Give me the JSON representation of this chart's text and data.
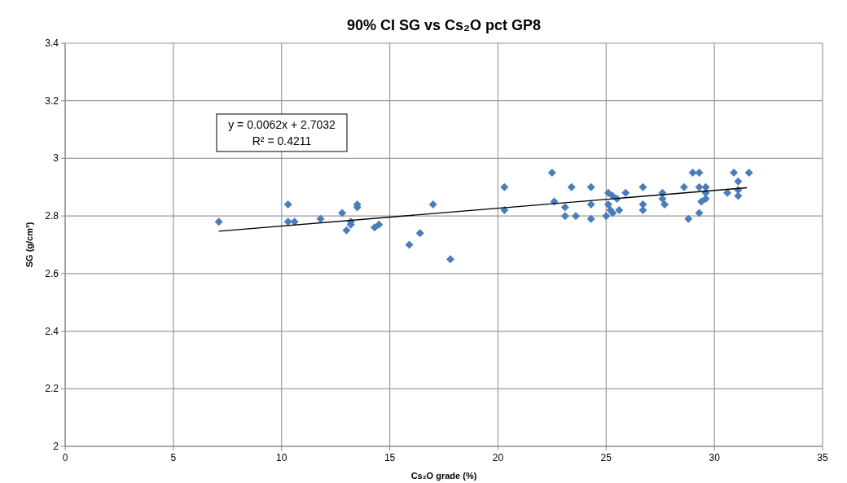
{
  "chart_data": {
    "type": "scatter",
    "title": "90% CI SG vs Cs₂O pct GP8",
    "xlabel": "Cs₂O grade (%)",
    "ylabel": "SG (g/cm³)",
    "xlim": [
      0,
      35
    ],
    "xticks": [
      0,
      5,
      10,
      15,
      20,
      25,
      30,
      35
    ],
    "ylim": [
      2,
      3.4
    ],
    "yticks": [
      2,
      {
        "value": 2.2,
        "label": "2.2"
      },
      {
        "value": 2.4,
        "label": "2.4"
      },
      {
        "value": 2.6,
        "label": "2.6"
      },
      {
        "value": 2.8,
        "label": "2.8"
      },
      3,
      {
        "value": 3.2,
        "label": "3.2"
      },
      {
        "value": 3.4,
        "label": "3.4"
      }
    ],
    "grid": true,
    "annotations": [
      "y = 0.0062x + 2.7032\nR² = 0.4211"
    ],
    "series": [
      {
        "marker": "diamond",
        "color": "#4a7ebb",
        "x": [
          7.1,
          10.3,
          10.3,
          10.6,
          11.8,
          12.8,
          13.0,
          13.2,
          13.2,
          13.5,
          13.5,
          14.3,
          14.5,
          15.9,
          16.4,
          17.0,
          17.8,
          20.3,
          20.3,
          22.5,
          22.6,
          23.1,
          23.1,
          23.4,
          23.6,
          24.3,
          24.3,
          24.3,
          25.0,
          25.1,
          25.3,
          25.1,
          25.2,
          25.3,
          25.5,
          25.6,
          25.9,
          26.7,
          26.7,
          26.7,
          27.6,
          27.6,
          27.7,
          28.6,
          28.8,
          29.0,
          29.3,
          29.3,
          29.3,
          29.4,
          29.6,
          29.6,
          29.6,
          30.6,
          30.9,
          31.1,
          31.1,
          31.1,
          31.6
        ],
        "values": [
          2.78,
          2.84,
          2.78,
          2.78,
          2.79,
          2.81,
          2.75,
          2.77,
          2.78,
          2.84,
          2.83,
          2.76,
          2.77,
          2.7,
          2.74,
          2.84,
          2.65,
          2.9,
          2.82,
          2.95,
          2.85,
          2.83,
          2.8,
          2.9,
          2.8,
          2.9,
          2.84,
          2.79,
          2.8,
          2.88,
          2.87,
          2.84,
          2.82,
          2.81,
          2.86,
          2.82,
          2.88,
          2.9,
          2.84,
          2.82,
          2.88,
          2.86,
          2.84,
          2.9,
          2.79,
          2.95,
          2.95,
          2.9,
          2.81,
          2.85,
          2.9,
          2.88,
          2.86,
          2.88,
          2.95,
          2.89,
          2.92,
          2.87,
          2.95
        ]
      },
      {
        "type": "line",
        "color": "#000000",
        "x": [
          7.1,
          31.5
        ],
        "values": [
          2.747,
          2.898
        ]
      }
    ]
  }
}
